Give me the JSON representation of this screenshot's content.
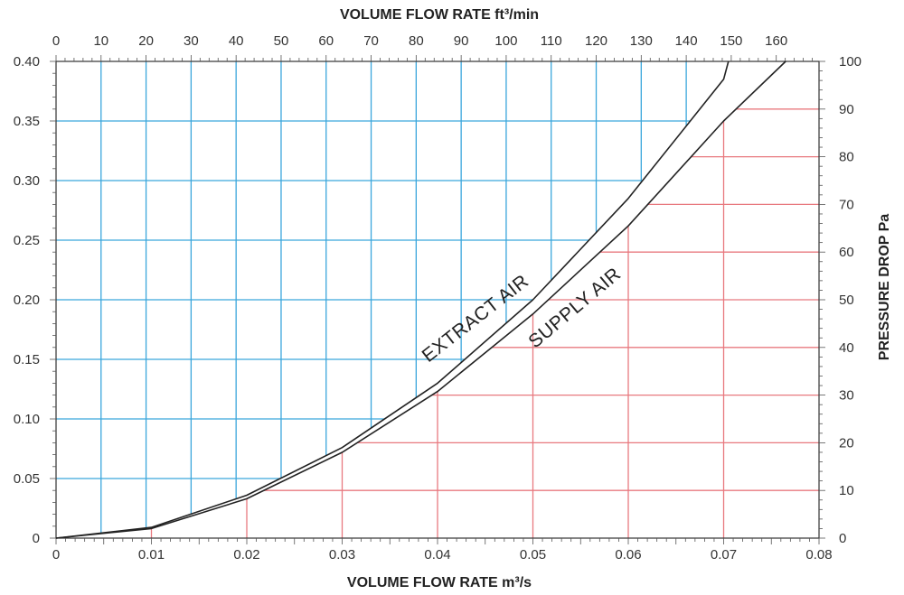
{
  "chart_data": {
    "type": "line",
    "title": "",
    "x_bottom": {
      "label": "VOLUME FLOW RATE m³/s",
      "range": [
        0,
        0.08
      ],
      "ticks": [
        {
          "value": 0,
          "label": "0"
        },
        {
          "value": 0.01,
          "label": "0.01"
        },
        {
          "value": 0.02,
          "label": "0.02"
        },
        {
          "value": 0.03,
          "label": "0.03"
        },
        {
          "value": 0.04,
          "label": "0.04"
        },
        {
          "value": 0.05,
          "label": "0.05"
        },
        {
          "value": 0.06,
          "label": "0.06"
        },
        {
          "value": 0.07,
          "label": "0.07"
        },
        {
          "value": 0.08,
          "label": "0.08"
        }
      ]
    },
    "x_top": {
      "label": "VOLUME FLOW RATE ft³/min",
      "range": [
        0,
        169.5
      ],
      "ticks": [
        {
          "value": 0,
          "label": "0"
        },
        {
          "value": 10,
          "label": "10"
        },
        {
          "value": 20,
          "label": "20"
        },
        {
          "value": 30,
          "label": "30"
        },
        {
          "value": 40,
          "label": "40"
        },
        {
          "value": 50,
          "label": "50"
        },
        {
          "value": 60,
          "label": "60"
        },
        {
          "value": 70,
          "label": "70"
        },
        {
          "value": 80,
          "label": "80"
        },
        {
          "value": 90,
          "label": "90"
        },
        {
          "value": 100,
          "label": "100"
        },
        {
          "value": 110,
          "label": "110"
        },
        {
          "value": 120,
          "label": "120"
        },
        {
          "value": 130,
          "label": "130"
        },
        {
          "value": 140,
          "label": "140"
        },
        {
          "value": 150,
          "label": "150"
        },
        {
          "value": 160,
          "label": "160"
        }
      ]
    },
    "y_left": {
      "label": "",
      "range": [
        0,
        0.4
      ],
      "ticks": [
        {
          "value": 0,
          "label": "0"
        },
        {
          "value": 0.05,
          "label": "0.05"
        },
        {
          "value": 0.1,
          "label": "0.10"
        },
        {
          "value": 0.15,
          "label": "0.15"
        },
        {
          "value": 0.2,
          "label": "0.20"
        },
        {
          "value": 0.25,
          "label": "0.25"
        },
        {
          "value": 0.3,
          "label": "0.30"
        },
        {
          "value": 0.35,
          "label": "0.35"
        },
        {
          "value": 0.4,
          "label": "0.40"
        }
      ]
    },
    "y_right": {
      "label": "PRESSURE DROP Pa",
      "range": [
        0,
        100
      ],
      "ticks": [
        {
          "value": 0,
          "label": "0"
        },
        {
          "value": 10,
          "label": "10"
        },
        {
          "value": 20,
          "label": "20"
        },
        {
          "value": 30,
          "label": "30"
        },
        {
          "value": 40,
          "label": "40"
        },
        {
          "value": 50,
          "label": "50"
        },
        {
          "value": 60,
          "label": "60"
        },
        {
          "value": 70,
          "label": "70"
        },
        {
          "value": 80,
          "label": "80"
        },
        {
          "value": 90,
          "label": "90"
        },
        {
          "value": 100,
          "label": "100"
        }
      ]
    },
    "grid": true,
    "grid_colors": {
      "upper_left": "#3aa6dc",
      "lower_right": "#e8797f"
    },
    "series": [
      {
        "name": "EXTRACT AIR",
        "color": "#222222",
        "x": [
          0,
          0.01,
          0.02,
          0.03,
          0.04,
          0.05,
          0.06,
          0.07,
          0.0705
        ],
        "y": [
          0,
          0.009,
          0.036,
          0.076,
          0.13,
          0.2,
          0.285,
          0.385,
          0.4
        ]
      },
      {
        "name": "SUPPLY AIR",
        "color": "#222222",
        "x": [
          0,
          0.01,
          0.02,
          0.03,
          0.04,
          0.05,
          0.06,
          0.07,
          0.0765
        ],
        "y": [
          0,
          0.008,
          0.033,
          0.072,
          0.123,
          0.188,
          0.262,
          0.35,
          0.4
        ]
      }
    ]
  }
}
